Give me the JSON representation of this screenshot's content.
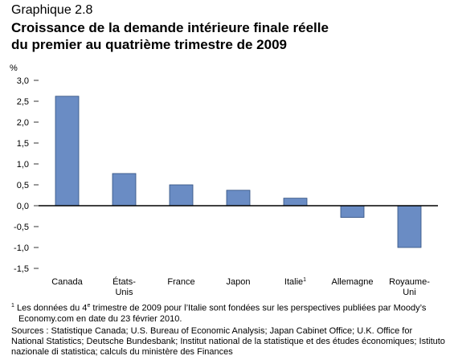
{
  "header": {
    "kicker": "Graphique 2.8",
    "title_line1": "Croissance de la demande intérieure finale réelle",
    "title_line2": "du premier au quatrième trimestre de 2009"
  },
  "chart_data": {
    "type": "bar",
    "ylabel": "%",
    "ylim": [
      -1.5,
      3.0
    ],
    "yticks": [
      "3,0",
      "2,5",
      "2,0",
      "1,5",
      "1,0",
      "0,5",
      "0,0",
      "-0,5",
      "-1,0",
      "-1,5"
    ],
    "ytick_values": [
      3.0,
      2.5,
      2.0,
      1.5,
      1.0,
      0.5,
      0.0,
      -0.5,
      -1.0,
      -1.5
    ],
    "categories": [
      [
        "Canada"
      ],
      [
        "États-",
        "Unis"
      ],
      [
        "France"
      ],
      [
        "Japon"
      ],
      [
        "Italie"
      ],
      [
        "Allemagne"
      ],
      [
        "Royaume-",
        "Uni"
      ]
    ],
    "category_superscripts": [
      "",
      "",
      "",
      "",
      "1",
      "",
      ""
    ],
    "values": [
      2.62,
      0.77,
      0.5,
      0.37,
      0.18,
      -0.28,
      -1.0
    ],
    "bar_color": "#6a8cc4",
    "bar_stroke": "#2f4f7f",
    "grid": false,
    "legend": "none"
  },
  "footnote": {
    "marker": "1",
    "text_before": " Les données du 4",
    "sup": "e",
    "text_after": " trimestre de 2009 pour l’Italie sont fondées sur les perspectives publiées par Moody’s Economy.com en date du 23 février 2010."
  },
  "sources": "Sources : Statistique Canada; U.S. Bureau of Economic Analysis; Japan Cabinet Office; U.K. Office for National Statistics; Deutsche Bundesbank; Institut national de la statistique et des études économiques; Istituto nazionale di statistica; calculs du ministère des Finances"
}
